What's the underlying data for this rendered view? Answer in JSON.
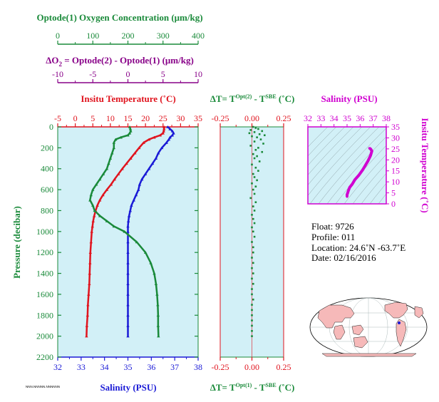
{
  "colors": {
    "oxygen": "#1a8a3a",
    "temperature": "#e0141e",
    "salinity": "#1a1ad6",
    "delta_o2": "#880088",
    "ts_axes": "#d000d0",
    "panel_bg": "#d2f0f7"
  },
  "top_axes": {
    "oxygen_title": "Optode(1) Oxygen Concentration (μm/kg)",
    "oxygen_ticks": [
      "0",
      "100",
      "200",
      "300",
      "400"
    ],
    "delta_title": "ΔO",
    "delta_sub": "2",
    "delta_title_rest": " = Optode(2) - Optode(1)    (μm/kg)",
    "delta_ticks": [
      "-10",
      "-5",
      "0",
      "5",
      "10"
    ]
  },
  "chart_data": [
    {
      "type": "line",
      "panel": "main-profile",
      "xlabel_top": "Insitu Temperature (˚C)",
      "xlabel_bottom": "Salinity (PSU)",
      "ylabel": "Pressure (decibar)",
      "temp_ticks": [
        "-5",
        "0",
        "5",
        "10",
        "15",
        "20",
        "25",
        "30",
        "35"
      ],
      "sal_ticks": [
        "32",
        "33",
        "34",
        "35",
        "36",
        "37",
        "38"
      ],
      "pressure_ticks": [
        "0",
        "200",
        "400",
        "600",
        "800",
        "1000",
        "1200",
        "1400",
        "1600",
        "1800",
        "2000",
        "2200"
      ],
      "temp_range": [
        -5,
        35
      ],
      "sal_range": [
        32,
        38
      ],
      "oxygen_range": [
        0,
        400
      ],
      "pressure_range": [
        0,
        2200
      ],
      "series": [
        {
          "name": "Insitu Temperature",
          "pressure": [
            0,
            20,
            40,
            60,
            80,
            100,
            120,
            150,
            200,
            250,
            300,
            350,
            400,
            450,
            500,
            550,
            600,
            650,
            700,
            750,
            800,
            850,
            900,
            950,
            1000,
            1100,
            1200,
            1300,
            1400,
            1500,
            1600,
            1700,
            1800,
            1900,
            2000
          ],
          "values": [
            25.3,
            25.3,
            25.2,
            25.0,
            24.2,
            22.5,
            21.0,
            19.5,
            18.2,
            17.0,
            15.8,
            14.6,
            13.4,
            12.3,
            11.2,
            10.2,
            9.0,
            7.9,
            7.0,
            6.3,
            5.8,
            5.4,
            5.1,
            4.9,
            4.7,
            4.5,
            4.3,
            4.2,
            4.1,
            4.0,
            3.8,
            3.6,
            3.5,
            3.3,
            3.2
          ]
        },
        {
          "name": "Salinity",
          "pressure": [
            0,
            20,
            40,
            60,
            80,
            100,
            120,
            150,
            200,
            250,
            300,
            350,
            400,
            450,
            500,
            550,
            600,
            650,
            700,
            750,
            800,
            850,
            900,
            950,
            1000,
            1100,
            1200,
            1300,
            1400,
            1500,
            1600,
            1700,
            1800,
            1900,
            2000
          ],
          "values": [
            36.7,
            36.8,
            36.9,
            36.95,
            36.9,
            36.8,
            36.75,
            36.65,
            36.45,
            36.3,
            36.2,
            36.05,
            35.9,
            35.75,
            35.6,
            35.5,
            35.45,
            35.35,
            35.25,
            35.15,
            35.1,
            35.05,
            35.02,
            35.0,
            35.0,
            35.0,
            35.0,
            35.0,
            35.0,
            35.0,
            35.0,
            35.0,
            35.0,
            35.0,
            35.0
          ]
        },
        {
          "name": "Optode(1) Oxygen Concentration",
          "pressure": [
            0,
            20,
            40,
            60,
            80,
            100,
            120,
            150,
            200,
            250,
            300,
            350,
            400,
            450,
            500,
            550,
            600,
            650,
            700,
            750,
            800,
            850,
            900,
            950,
            1000,
            1100,
            1200,
            1300,
            1400,
            1500,
            1600,
            1700,
            1800,
            1900,
            2000
          ],
          "values": [
            205,
            207,
            208,
            205,
            200,
            180,
            165,
            160,
            160,
            155,
            150,
            145,
            140,
            130,
            120,
            110,
            100,
            95,
            92,
            100,
            105,
            120,
            140,
            160,
            190,
            225,
            250,
            265,
            275,
            280,
            283,
            285,
            286,
            286,
            287
          ]
        }
      ]
    },
    {
      "type": "scatter",
      "panel": "temperature-difference",
      "xlabel_top_pre": "ΔT= T",
      "xlabel_top_sup": "Opt(2)",
      "xlabel_top_mid": " - T",
      "xlabel_top_sup2": "SBE",
      "xlabel_top_post": " (˚C)",
      "xlabel_bottom_pre": "ΔT= T",
      "xlabel_bottom_sup": "Opt(1)",
      "xlabel_bottom_mid": " - T",
      "xlabel_bottom_sup2": "SBE",
      "xlabel_bottom_post": " (˚C)",
      "x_ticks": [
        "-0.25",
        "0.00",
        "0.25"
      ],
      "x_range": [
        -0.25,
        0.25
      ],
      "pressure_range": [
        0,
        2200
      ],
      "points": [
        [
          0.01,
          0
        ],
        [
          0.03,
          10
        ],
        [
          0.05,
          20
        ],
        [
          -0.01,
          30
        ],
        [
          0.08,
          40
        ],
        [
          0.02,
          50
        ],
        [
          -0.02,
          60
        ],
        [
          0.06,
          70
        ],
        [
          0.1,
          80
        ],
        [
          0.0,
          90
        ],
        [
          0.04,
          100
        ],
        [
          0.07,
          120
        ],
        [
          0.02,
          140
        ],
        [
          0.09,
          160
        ],
        [
          -0.01,
          180
        ],
        [
          0.05,
          200
        ],
        [
          0.03,
          220
        ],
        [
          0.08,
          240
        ],
        [
          0.01,
          260
        ],
        [
          0.04,
          280
        ],
        [
          0.02,
          300
        ],
        [
          0.06,
          330
        ],
        [
          0.0,
          360
        ],
        [
          0.03,
          390
        ],
        [
          0.05,
          420
        ],
        [
          0.01,
          450
        ],
        [
          0.02,
          480
        ],
        [
          0.04,
          510
        ],
        [
          0.0,
          540
        ],
        [
          0.03,
          570
        ],
        [
          0.01,
          600
        ],
        [
          0.02,
          640
        ],
        [
          -0.01,
          680
        ],
        [
          0.03,
          720
        ],
        [
          0.01,
          760
        ],
        [
          0.02,
          800
        ],
        [
          0.0,
          840
        ],
        [
          0.01,
          880
        ],
        [
          0.02,
          920
        ],
        [
          0.0,
          960
        ],
        [
          0.01,
          1000
        ],
        [
          0.02,
          1050
        ],
        [
          0.0,
          1100
        ],
        [
          0.01,
          1150
        ],
        [
          0.01,
          1200
        ],
        [
          0.0,
          1250
        ],
        [
          0.01,
          1300
        ],
        [
          0.0,
          1350
        ],
        [
          0.01,
          1400
        ],
        [
          0.0,
          1450
        ],
        [
          0.01,
          1500
        ],
        [
          0.0,
          1550
        ],
        [
          0.0,
          1600
        ],
        [
          0.01,
          1650
        ],
        [
          0.0,
          1700
        ],
        [
          0.0,
          1750
        ],
        [
          0.0,
          1800
        ],
        [
          0.0,
          1850
        ],
        [
          0.0,
          1900
        ],
        [
          0.0,
          1950
        ],
        [
          0.0,
          2000
        ]
      ]
    },
    {
      "type": "line",
      "panel": "ts-diagram",
      "xlabel_top": "Salinity (PSU)",
      "ylabel_right": "Insitu Temperature (˚C)",
      "x_ticks": [
        "32",
        "33",
        "34",
        "35",
        "36",
        "37",
        "38"
      ],
      "y_ticks": [
        "0",
        "5",
        "10",
        "15",
        "20",
        "25",
        "30",
        "35"
      ],
      "x_range": [
        32,
        38
      ],
      "y_range": [
        0,
        35
      ],
      "series": [
        {
          "name": "T-S",
          "x": [
            36.7,
            36.8,
            36.9,
            36.8,
            36.6,
            36.4,
            36.2,
            35.9,
            35.6,
            35.4,
            35.2,
            35.1,
            35.05,
            35.0,
            35.0
          ],
          "y": [
            25.3,
            25.0,
            24.0,
            22.0,
            19.5,
            17.5,
            15.5,
            13.0,
            11.0,
            9.0,
            7.5,
            6.0,
            5.0,
            4.2,
            3.2
          ]
        }
      ]
    }
  ],
  "info": {
    "float": "Float:  9726",
    "profile": "Profile:  011",
    "location": "Location:  24.6˚N  -63.7˚E",
    "date": "Date:  02/16/2016"
  },
  "footer_tag": "NNN.NNNNN.NNNNNN",
  "map_marker": {
    "lat": 24.6,
    "lon": -63.7
  }
}
